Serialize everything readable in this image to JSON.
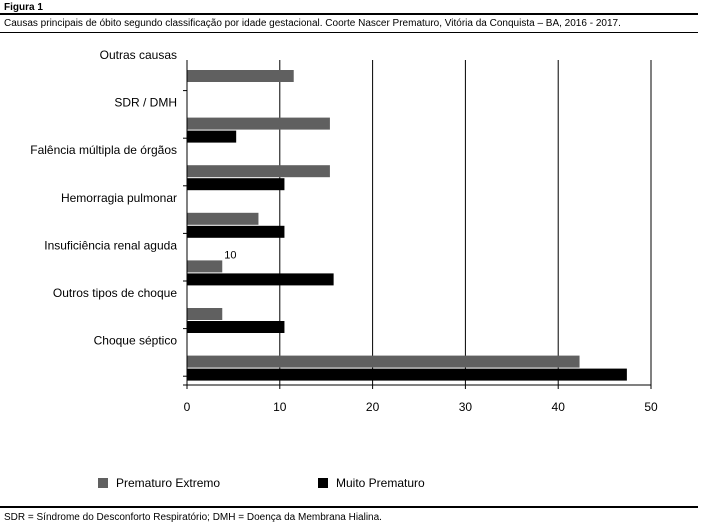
{
  "figure_label": "Figura 1",
  "caption": "Causas principais de óbito segundo classificação por idade gestacional. Coorte Nascer Prematuro, Vitória da Conquista – BA, 2016 - 2017.",
  "footnote": "SDR = Síndrome do Desconforto Respiratório; DMH = Doença da Membrana Hialina.",
  "colors": {
    "series_1": "#606060",
    "series_2": "#000000",
    "grid": "#000000"
  },
  "legend": [
    {
      "label": "Prematuro Extremo",
      "color": "#606060"
    },
    {
      "label": "Muito Prematuro",
      "color": "#000000"
    }
  ],
  "chart_data": {
    "type": "bar",
    "orientation": "horizontal",
    "categories": [
      "Outras causas",
      "SDR / DMH",
      "Falência múltipla de órgãos",
      "Hemorragia pulmonar",
      "Insuficiência renal aguda",
      "Outros tipos de choque",
      "Choque séptico"
    ],
    "series": [
      {
        "name": "Prematuro Extremo",
        "values": [
          11.5,
          15.4,
          15.4,
          7.7,
          3.8,
          3.8,
          42.3
        ]
      },
      {
        "name": "Muito Prematuro",
        "values": [
          0,
          5.3,
          10.5,
          10.5,
          15.8,
          10.5,
          47.4
        ]
      }
    ],
    "annotations": [
      {
        "category": "Insuficiência renal aguda",
        "text": "10"
      }
    ],
    "xlim": [
      0,
      50
    ],
    "xticks": [
      0,
      10,
      20,
      30,
      40,
      50
    ],
    "grid": "vertical lines at major ticks",
    "legend_position": "bottom",
    "title": "",
    "xlabel": "",
    "ylabel": ""
  }
}
